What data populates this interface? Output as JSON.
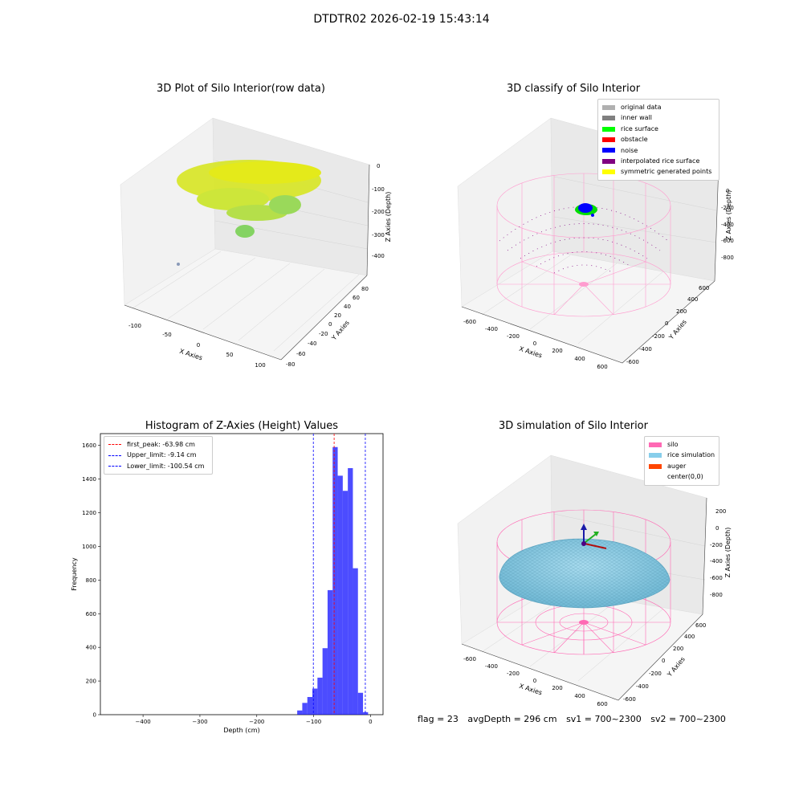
{
  "suptitle": "DTDTR02 2026-02-19 15:43:14",
  "panels": {
    "raw": {
      "title": "3D Plot of Silo Interior(row data)",
      "xlabel": "X Axies",
      "ylabel": "Y Axies",
      "zlabel": "Z Axies (Depth)",
      "xticks": [
        "-100",
        "-50",
        "0",
        "50",
        "100"
      ],
      "yticks": [
        "-80",
        "-60",
        "-40",
        "-20",
        "0",
        "20",
        "40",
        "60",
        "80"
      ],
      "zticks": [
        "0",
        "-100",
        "-200",
        "-300",
        "-400"
      ]
    },
    "classify": {
      "title": "3D classify of Silo Interior",
      "xlabel": "X Axies",
      "ylabel": "Y Axies",
      "zlabel": "Z Axies (Depth)",
      "xticks": [
        "-600",
        "-400",
        "-200",
        "0",
        "200",
        "400",
        "600"
      ],
      "yticks": [
        "-600",
        "-400",
        "-200",
        "0",
        "200",
        "400",
        "600"
      ],
      "zticks": [
        "0",
        "-200",
        "-400",
        "-600",
        "-800"
      ],
      "legend": [
        {
          "label": "original data",
          "color": "#b0b0b0"
        },
        {
          "label": "inner wall",
          "color": "#808080"
        },
        {
          "label": "rice surface",
          "color": "#00ff00"
        },
        {
          "label": "obstacle",
          "color": "#ff0000"
        },
        {
          "label": "noise",
          "color": "#0000ff"
        },
        {
          "label": "interpolated rice surface",
          "color": "#800080"
        },
        {
          "label": "symmetric generated points",
          "color": "#ffff00"
        }
      ]
    },
    "simulation": {
      "title": "3D simulation of Silo Interior",
      "xlabel": "X Axies",
      "ylabel": "Y Axies",
      "zlabel": "Z Axies (Depth)",
      "xticks": [
        "-600",
        "-400",
        "-200",
        "0",
        "200",
        "400",
        "600"
      ],
      "yticks": [
        "-600",
        "-400",
        "-200",
        "0",
        "200",
        "400",
        "600"
      ],
      "zticks": [
        "200",
        "0",
        "-200",
        "-400",
        "-600",
        "-800"
      ],
      "legend": [
        {
          "label": "silo",
          "color": "#ff69b4"
        },
        {
          "label": "rice simulation",
          "color": "#87ceeb"
        },
        {
          "label": "auger",
          "color": "#ff4500"
        },
        {
          "label": "center(0,0)",
          "color": "#ffffff"
        }
      ]
    }
  },
  "status": {
    "flag": "flag = 23",
    "avg_depth": "avgDepth = 296 cm",
    "sv1": "sv1 = 700~2300",
    "sv2": "sv2 = 700~2300"
  },
  "chart_data": [
    {
      "type": "bar",
      "title": "Histogram of Z-Axies (Height) Values",
      "xlabel": "Depth (cm)",
      "ylabel": "Frequency",
      "bar_color": "#0000ff",
      "xlim": [
        -475,
        22
      ],
      "ylim": [
        0,
        1670
      ],
      "xticks": [
        -400,
        -300,
        -200,
        -100,
        0
      ],
      "yticks": [
        0,
        200,
        400,
        600,
        800,
        1000,
        1200,
        1400,
        1600
      ],
      "bin_width": 8.9,
      "bins": [
        {
          "x0": -128.9,
          "count": 25
        },
        {
          "x0": -120.0,
          "count": 70
        },
        {
          "x0": -111.1,
          "count": 105
        },
        {
          "x0": -102.2,
          "count": 155
        },
        {
          "x0": -93.3,
          "count": 220
        },
        {
          "x0": -84.4,
          "count": 395
        },
        {
          "x0": -75.5,
          "count": 740
        },
        {
          "x0": -66.6,
          "count": 1590
        },
        {
          "x0": -57.7,
          "count": 1420
        },
        {
          "x0": -48.8,
          "count": 1330
        },
        {
          "x0": -39.9,
          "count": 1465
        },
        {
          "x0": -31.0,
          "count": 870
        },
        {
          "x0": -22.1,
          "count": 130
        },
        {
          "x0": -13.2,
          "count": 15
        }
      ],
      "vlines": [
        {
          "label": "first_peak: -63.98 cm",
          "x": -63.98,
          "color": "#ff0000"
        },
        {
          "label": "Upper_limit: -9.14 cm",
          "x": -9.14,
          "color": "#0000ff"
        },
        {
          "label": "Lower_limit: -100.54 cm",
          "x": -100.54,
          "color": "#0000ff"
        }
      ]
    }
  ]
}
